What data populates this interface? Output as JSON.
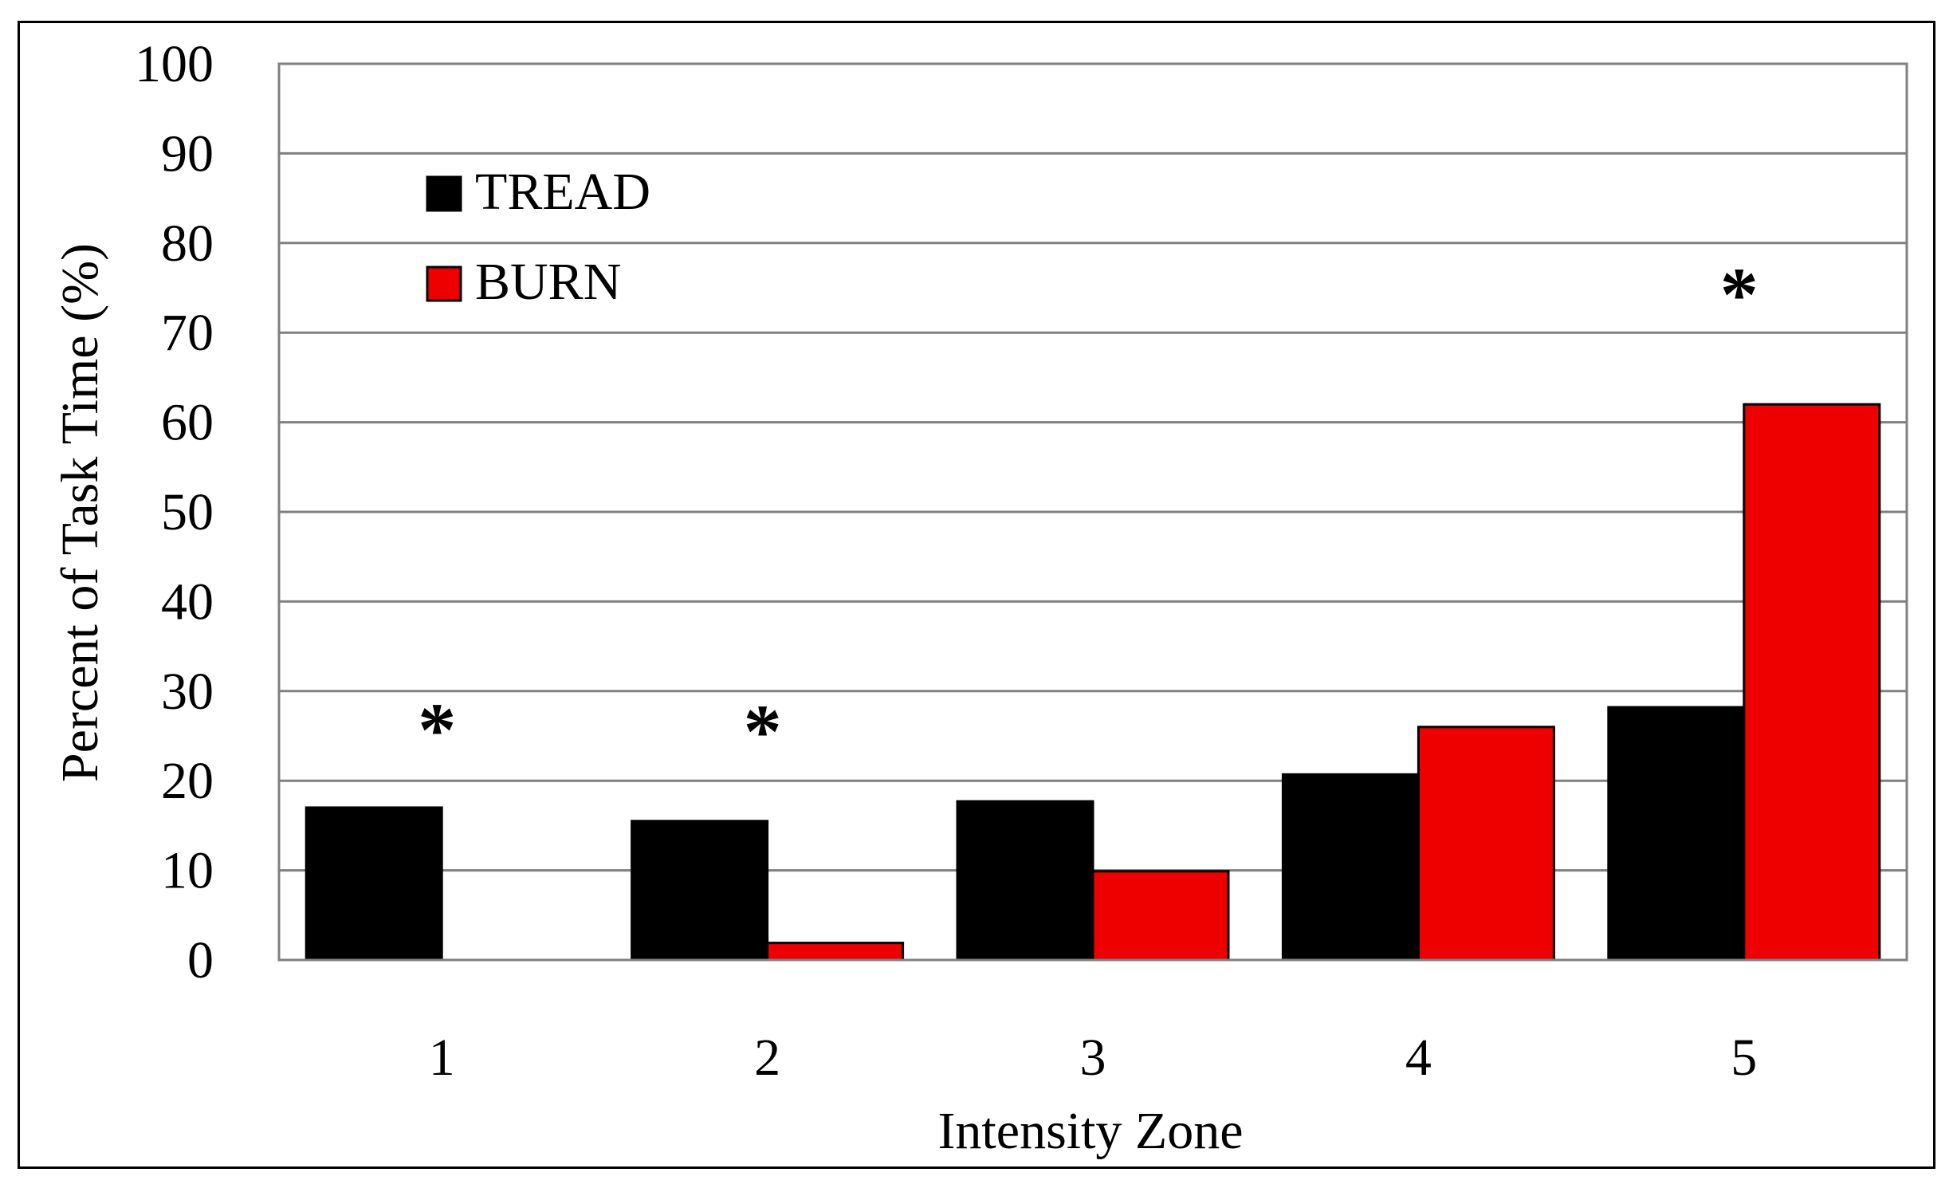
{
  "chart_data": {
    "type": "bar",
    "categories": [
      "1",
      "2",
      "3",
      "4",
      "5"
    ],
    "series": [
      {
        "name": "TREAD",
        "color": "#000000",
        "values": [
          17,
          15.5,
          17.7,
          20.7,
          28.2
        ]
      },
      {
        "name": "BURN",
        "color": "#ee0000",
        "values": [
          0,
          1.9,
          9.9,
          26,
          62
        ]
      }
    ],
    "xlabel": "Intensity Zone",
    "ylabel": "Percent of Task Time (%)",
    "ylim": [
      0,
      100
    ],
    "yticks": [
      "0",
      "10",
      "20",
      "30",
      "40",
      "50",
      "60",
      "70",
      "80",
      "90",
      "100"
    ],
    "grid": true,
    "legend_position": "top-left",
    "annotations": [
      {
        "category": "1",
        "text": "*"
      },
      {
        "category": "2",
        "text": "*"
      },
      {
        "category": "5",
        "text": "*"
      }
    ]
  }
}
